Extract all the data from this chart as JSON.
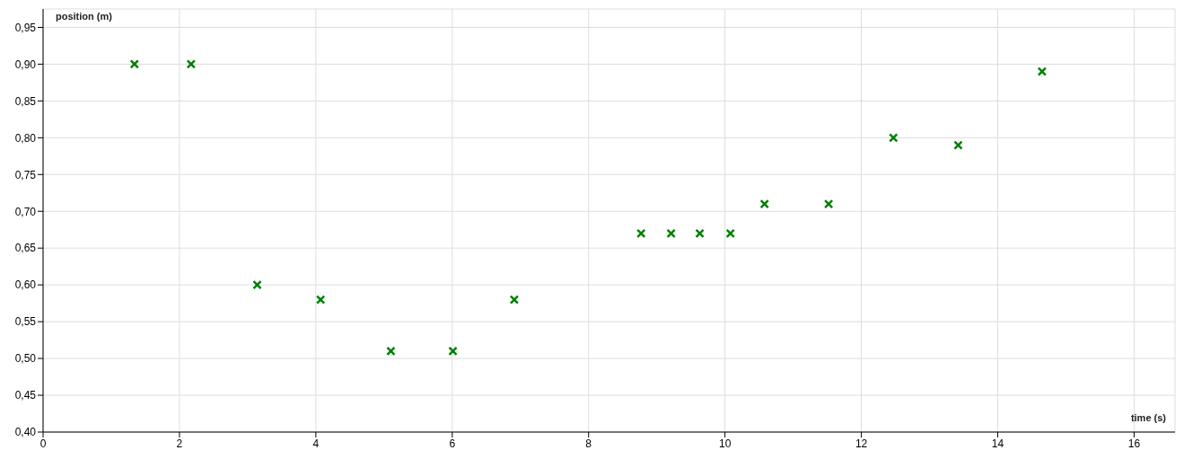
{
  "chart_data": {
    "type": "scatter",
    "xlabel": "time (s)",
    "ylabel": "position (m)",
    "x": [
      1.34,
      2.17,
      3.14,
      4.07,
      5.1,
      6.01,
      6.91,
      8.77,
      9.21,
      9.63,
      10.08,
      10.58,
      11.52,
      12.47,
      13.42,
      14.65
    ],
    "series": [
      {
        "color": "#008000",
        "values": [
          0.9,
          0.9,
          0.6,
          0.58,
          0.51,
          0.51,
          0.58,
          0.67,
          0.67,
          0.67,
          0.67,
          0.71,
          0.71,
          0.8,
          0.79,
          0.89
        ]
      }
    ],
    "xlim": [
      0,
      16.6
    ],
    "xticks": [
      0,
      2,
      4,
      6,
      8,
      10,
      12,
      14,
      16
    ],
    "ylim": [
      0.4,
      0.975
    ],
    "yticks": [
      {
        "value": 0.4,
        "label": "0,40"
      },
      {
        "value": 0.45,
        "label": "0,45"
      },
      {
        "value": 0.5,
        "label": "0,50"
      },
      {
        "value": 0.55,
        "label": "0,55"
      },
      {
        "value": 0.6,
        "label": "0,60"
      },
      {
        "value": 0.65,
        "label": "0,65"
      },
      {
        "value": 0.7,
        "label": "0,70"
      },
      {
        "value": 0.75,
        "label": "0,75"
      },
      {
        "value": 0.8,
        "label": "0,80"
      },
      {
        "value": 0.85,
        "label": "0,85"
      },
      {
        "value": 0.9,
        "label": "0,90"
      },
      {
        "value": 0.95,
        "label": "0,95"
      }
    ],
    "grid": true,
    "marker": "cross"
  }
}
